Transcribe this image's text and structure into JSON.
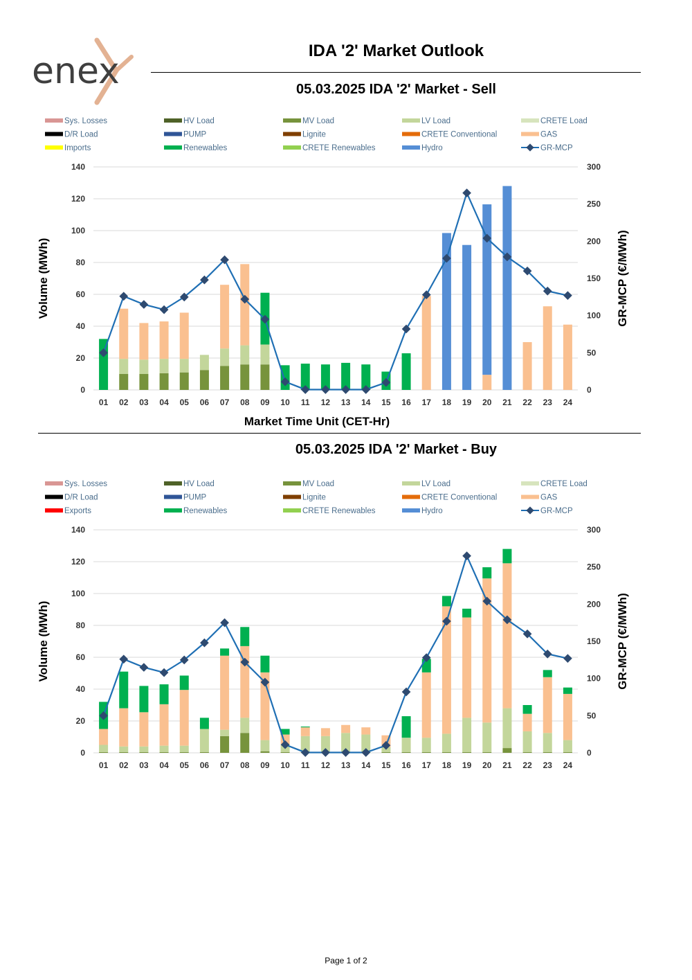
{
  "header": {
    "logo_text": "enex",
    "title": "IDA '2' Market Outlook"
  },
  "footer": {
    "page": "Page 1 of 2"
  },
  "colors": {
    "Sys. Losses": "#d99694",
    "HV Load": "#4f6228",
    "MV Load": "#77933c",
    "LV Load": "#c3d69b",
    "CRETE Load": "#d7e4bd",
    "D/R Load": "#000000",
    "PUMP": "#2f5597",
    "Lignite": "#7f3f00",
    "CRETE Conventional": "#e46c0a",
    "GAS": "#fac090",
    "Imports": "#ffff00",
    "Exports": "#ff0000",
    "Renewables": "#00b050",
    "CRETE Renewables": "#92d050",
    "Hydro": "#558ed5",
    "GR-MCP": "#1f6fb4"
  },
  "chart_data": [
    {
      "type": "bar",
      "title": "05.03.2025  IDA '2' Market - Sell",
      "xlabel": "Market Time Unit (CET-Hr)",
      "ylabel": "Volume (MWh)",
      "y2label": "GR-MCP (€/MWh)",
      "ylim": [
        0,
        140
      ],
      "y2lim": [
        0,
        300
      ],
      "yticks": [
        "0",
        "20",
        "40",
        "60",
        "80",
        "100",
        "120",
        "140"
      ],
      "y2ticks": [
        "0",
        "50",
        "100",
        "150",
        "200",
        "250",
        "300"
      ],
      "legend": [
        "Sys. Losses",
        "HV Load",
        "MV Load",
        "LV Load",
        "CRETE Load",
        "D/R Load",
        "PUMP",
        "Lignite",
        "CRETE Conventional",
        "GAS",
        "Imports",
        "Renewables",
        "CRETE Renewables",
        "Hydro",
        "GR-MCP"
      ],
      "categories": [
        "01",
        "02",
        "03",
        "04",
        "05",
        "06",
        "07",
        "08",
        "09",
        "10",
        "11",
        "12",
        "13",
        "14",
        "15",
        "16",
        "17",
        "18",
        "19",
        "20",
        "21",
        "22",
        "23",
        "24"
      ],
      "series": [
        {
          "name": "MV Load",
          "values": [
            0,
            10,
            10,
            10.5,
            11,
            12.5,
            15,
            16,
            16,
            0,
            0,
            0,
            0,
            0,
            0,
            0,
            0,
            0,
            0,
            0,
            0,
            0,
            0,
            0
          ]
        },
        {
          "name": "LV Load",
          "values": [
            0,
            9.5,
            9,
            9,
            8.5,
            9.5,
            11,
            12,
            12.5,
            0,
            0,
            0,
            0,
            0,
            0,
            0,
            0,
            0,
            0,
            0,
            0,
            0,
            0,
            0
          ]
        },
        {
          "name": "GAS",
          "values": [
            0,
            31.5,
            23,
            23.5,
            29,
            0,
            40,
            51,
            0,
            0,
            0,
            0,
            0,
            0,
            0,
            0,
            59,
            0,
            0,
            9.5,
            0,
            30,
            52.5,
            41
          ]
        },
        {
          "name": "Renewables",
          "values": [
            32,
            0,
            0,
            0,
            0,
            0,
            0,
            0,
            32.5,
            15.5,
            16.5,
            16,
            17,
            16,
            11.5,
            23,
            0,
            0,
            0,
            0,
            0,
            0,
            0,
            0
          ]
        },
        {
          "name": "Hydro",
          "values": [
            0,
            0,
            0,
            0,
            0,
            0,
            0,
            0,
            0,
            0,
            0,
            0,
            0,
            0,
            0,
            0,
            0,
            98.5,
            91,
            107,
            128,
            0,
            0,
            0
          ]
        }
      ],
      "line": {
        "name": "GR-MCP",
        "values": [
          50,
          126,
          115,
          108,
          125,
          148,
          175,
          122,
          95,
          11,
          0.5,
          0.5,
          0.5,
          0.5,
          10,
          82,
          128,
          177,
          265,
          204,
          179,
          160,
          133,
          127
        ]
      }
    },
    {
      "type": "bar",
      "title": "05.03.2025  IDA '2' Market - Buy",
      "xlabel": "",
      "ylabel": "Volume (MWh)",
      "y2label": "GR-MCP (€/MWh)",
      "ylim": [
        0,
        140
      ],
      "y2lim": [
        0,
        300
      ],
      "yticks": [
        "0",
        "20",
        "40",
        "60",
        "80",
        "100",
        "120",
        "140"
      ],
      "y2ticks": [
        "0",
        "50",
        "100",
        "150",
        "200",
        "250",
        "300"
      ],
      "legend": [
        "Sys. Losses",
        "HV Load",
        "MV Load",
        "LV Load",
        "CRETE Load",
        "D/R Load",
        "PUMP",
        "Lignite",
        "CRETE Conventional",
        "GAS",
        "Exports",
        "Renewables",
        "CRETE Renewables",
        "Hydro",
        "GR-MCP"
      ],
      "categories": [
        "01",
        "02",
        "03",
        "04",
        "05",
        "06",
        "07",
        "08",
        "09",
        "10",
        "11",
        "12",
        "13",
        "14",
        "15",
        "16",
        "17",
        "18",
        "19",
        "20",
        "21",
        "22",
        "23",
        "24"
      ],
      "series": [
        {
          "name": "HV Load",
          "values": [
            0,
            0,
            0,
            0,
            0,
            0,
            0,
            0,
            0,
            0,
            0,
            0,
            0,
            0,
            0,
            0,
            0,
            0,
            0,
            0,
            0,
            0,
            0,
            0
          ]
        },
        {
          "name": "MV Load",
          "values": [
            0.5,
            0.5,
            0.5,
            0.5,
            0.5,
            0.5,
            10.5,
            12.5,
            1,
            0.5,
            0.5,
            0.5,
            0.5,
            0.5,
            0.5,
            0.5,
            0.5,
            0.5,
            0.5,
            0.5,
            3,
            0.5,
            0.5,
            0.5
          ]
        },
        {
          "name": "LV Load",
          "values": [
            4.5,
            3.5,
            3.5,
            4,
            4,
            14.5,
            4,
            9.5,
            7,
            5,
            10,
            10,
            12,
            11,
            3,
            9,
            9,
            11.5,
            21.5,
            18.5,
            25,
            13,
            12,
            7.5
          ]
        },
        {
          "name": "GAS",
          "values": [
            10,
            24,
            21.5,
            26,
            35,
            0,
            46.5,
            45,
            42.5,
            6,
            5.5,
            5,
            5,
            4.5,
            7.5,
            0,
            41,
            80,
            63,
            90.5,
            91,
            11,
            35,
            29
          ]
        },
        {
          "name": "Renewables",
          "values": [
            17,
            23,
            16.5,
            12.5,
            9,
            7,
            4.5,
            12,
            10.5,
            3.5,
            0.5,
            0,
            0,
            0,
            0,
            13.5,
            8.5,
            6.5,
            5.5,
            7,
            9,
            5.5,
            4.5,
            4
          ]
        }
      ],
      "line": {
        "name": "GR-MCP",
        "values": [
          50,
          126,
          115,
          108,
          125,
          148,
          175,
          122,
          95,
          11,
          0.5,
          0.5,
          0.5,
          0.5,
          10,
          82,
          128,
          177,
          265,
          204,
          179,
          160,
          133,
          127
        ]
      }
    }
  ]
}
